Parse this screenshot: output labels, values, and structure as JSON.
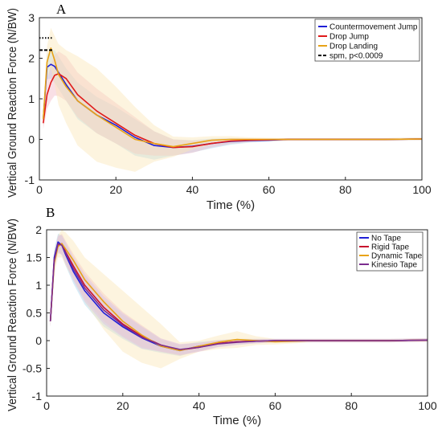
{
  "chart_data": [
    {
      "type": "line",
      "panel_label": "A",
      "xlabel": "Time (%)",
      "ylabel": "Vertical Ground Reaction Force (N/BW)",
      "xlim": [
        0,
        100
      ],
      "ylim": [
        -1,
        3
      ],
      "xticks": [
        0,
        20,
        40,
        60,
        80,
        100
      ],
      "yticks": [
        -1,
        0,
        1,
        2,
        3
      ],
      "grid": false,
      "legend_position": "top-right",
      "x": [
        1,
        2,
        3,
        4,
        5,
        7,
        10,
        15,
        20,
        25,
        30,
        35,
        40,
        45,
        50,
        55,
        60,
        65,
        70,
        80,
        90,
        100
      ],
      "series": [
        {
          "name": "Countermovement Jump",
          "color": "#1f1fd6",
          "band_color": "#a9d8ee",
          "values": [
            0.5,
            1.78,
            1.85,
            1.8,
            1.65,
            1.35,
            0.95,
            0.6,
            0.35,
            0.05,
            -0.15,
            -0.2,
            -0.17,
            -0.1,
            -0.05,
            -0.03,
            -0.02,
            0.0,
            0.0,
            0.0,
            0.0,
            0.01
          ],
          "sd": [
            0.15,
            0.3,
            0.35,
            0.4,
            0.4,
            0.4,
            0.45,
            0.45,
            0.45,
            0.45,
            0.35,
            0.2,
            0.15,
            0.12,
            0.08,
            0.05,
            0.04,
            0.03,
            0.03,
            0.03,
            0.03,
            0.03
          ]
        },
        {
          "name": "Drop Jump",
          "color": "#e01a1a",
          "band_color": "#f2b8c6",
          "values": [
            0.4,
            1.1,
            1.4,
            1.58,
            1.62,
            1.5,
            1.1,
            0.7,
            0.4,
            0.1,
            -0.1,
            -0.2,
            -0.18,
            -0.1,
            -0.04,
            -0.02,
            -0.01,
            0.0,
            0.0,
            0.0,
            0.0,
            0.01
          ],
          "sd": [
            0.15,
            0.35,
            0.45,
            0.5,
            0.55,
            0.55,
            0.55,
            0.55,
            0.5,
            0.45,
            0.3,
            0.2,
            0.15,
            0.1,
            0.07,
            0.05,
            0.04,
            0.03,
            0.03,
            0.03,
            0.03,
            0.03
          ]
        },
        {
          "name": "Drop Landing",
          "color": "#e8a317",
          "band_color": "#fbe7b8",
          "values": [
            0.5,
            1.9,
            2.25,
            1.95,
            1.6,
            1.3,
            0.95,
            0.6,
            0.3,
            0.0,
            -0.1,
            -0.18,
            -0.1,
            -0.02,
            0.0,
            0.0,
            0.0,
            0.0,
            0.0,
            0.0,
            0.0,
            0.01
          ],
          "sd": [
            0.2,
            0.4,
            0.5,
            0.6,
            0.75,
            0.9,
            1.1,
            1.15,
            1.0,
            0.8,
            0.45,
            0.25,
            0.15,
            0.1,
            0.08,
            0.05,
            0.04,
            0.03,
            0.03,
            0.03,
            0.03,
            0.03
          ]
        }
      ],
      "spm_legend": "spm, p<0.0009",
      "spm_marks": [
        {
          "y": 2.5,
          "x0": 0,
          "x1": 3.5,
          "style": "dotted"
        },
        {
          "y": 2.2,
          "x0": 0,
          "x1": 3.5,
          "style": "dashed"
        }
      ]
    },
    {
      "type": "line",
      "panel_label": "B",
      "xlabel": "Time (%)",
      "ylabel": "Vertical Ground Reaction Force (N/BW)",
      "xlim": [
        0,
        100
      ],
      "ylim": [
        -1,
        2
      ],
      "xticks": [
        0,
        20,
        40,
        60,
        80,
        100
      ],
      "yticks": [
        -1,
        -0.5,
        0,
        0.5,
        1,
        1.5,
        2
      ],
      "grid": false,
      "legend_position": "top-right",
      "x": [
        1,
        2,
        3,
        4,
        5,
        7,
        10,
        15,
        20,
        25,
        30,
        35,
        40,
        45,
        50,
        55,
        60,
        70,
        80,
        90,
        100
      ],
      "series": [
        {
          "name": "No Tape",
          "color": "#1f1fd6",
          "band_color": "#a9d8ee",
          "values": [
            0.35,
            1.5,
            1.78,
            1.72,
            1.55,
            1.25,
            0.9,
            0.5,
            0.25,
            0.05,
            -0.1,
            -0.18,
            -0.1,
            -0.05,
            -0.02,
            -0.01,
            0.0,
            0.0,
            0.0,
            0.0,
            0.01
          ],
          "sd": [
            0.1,
            0.15,
            0.15,
            0.18,
            0.2,
            0.22,
            0.25,
            0.25,
            0.22,
            0.2,
            0.12,
            0.1,
            0.08,
            0.06,
            0.05,
            0.04,
            0.03,
            0.03,
            0.03,
            0.03,
            0.03
          ]
        },
        {
          "name": "Rigid Tape",
          "color": "#c8102e",
          "band_color": "#f2b8c6",
          "values": [
            0.35,
            1.45,
            1.72,
            1.75,
            1.6,
            1.35,
            1.0,
            0.6,
            0.3,
            0.08,
            -0.08,
            -0.17,
            -0.12,
            -0.05,
            -0.02,
            -0.01,
            0.0,
            0.0,
            0.0,
            0.0,
            0.01
          ],
          "sd": [
            0.1,
            0.15,
            0.15,
            0.18,
            0.2,
            0.22,
            0.25,
            0.25,
            0.22,
            0.2,
            0.12,
            0.1,
            0.08,
            0.06,
            0.05,
            0.04,
            0.03,
            0.03,
            0.03,
            0.03,
            0.03
          ]
        },
        {
          "name": "Dynamic Tape",
          "color": "#e8a317",
          "band_color": "#fbe7b8",
          "values": [
            0.35,
            1.4,
            1.7,
            1.75,
            1.65,
            1.45,
            1.1,
            0.7,
            0.35,
            0.1,
            -0.1,
            -0.18,
            -0.1,
            -0.03,
            0.02,
            0.0,
            -0.02,
            0.0,
            0.0,
            0.0,
            0.01
          ],
          "sd": [
            0.1,
            0.2,
            0.2,
            0.25,
            0.3,
            0.35,
            0.4,
            0.5,
            0.55,
            0.5,
            0.4,
            0.15,
            0.1,
            0.12,
            0.15,
            0.08,
            0.05,
            0.03,
            0.03,
            0.03,
            0.03
          ]
        },
        {
          "name": "Kinesio Tape",
          "color": "#7b2d8e",
          "band_color": "#d9c2e6",
          "values": [
            0.35,
            1.45,
            1.75,
            1.72,
            1.58,
            1.3,
            0.95,
            0.55,
            0.28,
            0.06,
            -0.08,
            -0.16,
            -0.12,
            -0.06,
            -0.03,
            -0.01,
            0.0,
            0.0,
            0.0,
            0.0,
            0.01
          ],
          "sd": [
            0.1,
            0.15,
            0.15,
            0.18,
            0.2,
            0.22,
            0.25,
            0.25,
            0.22,
            0.2,
            0.12,
            0.1,
            0.08,
            0.06,
            0.05,
            0.04,
            0.03,
            0.03,
            0.03,
            0.03,
            0.03
          ]
        }
      ]
    }
  ]
}
